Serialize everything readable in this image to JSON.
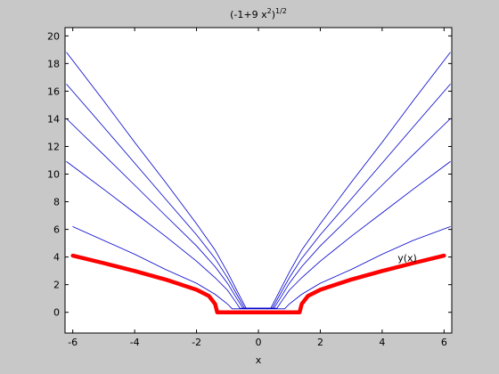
{
  "figure": {
    "background": "#c8c8c8"
  },
  "chart_data": {
    "type": "line",
    "title_base": "(-1+9 x",
    "title_sup1": "2",
    "title_close": ")",
    "title_sup2": "1/2",
    "xlabel": "x",
    "ylabel": "",
    "xlim": [
      -6.25,
      6.25
    ],
    "ylim": [
      -1.5,
      20.6
    ],
    "xticks": [
      -6,
      -4,
      -2,
      0,
      2,
      4,
      6
    ],
    "yticks": [
      0,
      2,
      4,
      6,
      8,
      10,
      12,
      14,
      16,
      18,
      20
    ],
    "grid": false,
    "annotation": {
      "text": "y(x)",
      "x": 4.5,
      "y": 3.7
    },
    "series": [
      {
        "color": "#0000cc",
        "width": 0.8,
        "points": [
          [
            -6.0,
            6.2
          ],
          [
            -5.0,
            5.2
          ],
          [
            -4.0,
            4.2
          ],
          [
            -3.0,
            3.1
          ],
          [
            -2.0,
            2.1
          ],
          [
            -1.4,
            1.3
          ],
          [
            -1.0,
            0.6
          ],
          [
            -0.85,
            0.25
          ],
          [
            0.85,
            0.25
          ],
          [
            1.0,
            0.6
          ],
          [
            1.4,
            1.3
          ],
          [
            2.0,
            2.1
          ],
          [
            3.0,
            3.1
          ],
          [
            4.0,
            4.2
          ],
          [
            5.0,
            5.2
          ],
          [
            6.2,
            6.2
          ]
        ]
      },
      {
        "color": "#0000cc",
        "width": 0.8,
        "points": [
          [
            -6.2,
            10.9
          ],
          [
            -5.0,
            8.9
          ],
          [
            -4.0,
            7.2
          ],
          [
            -3.0,
            5.5
          ],
          [
            -2.0,
            3.7
          ],
          [
            -1.4,
            2.5
          ],
          [
            -1.0,
            1.6
          ],
          [
            -0.75,
            0.8
          ],
          [
            -0.6,
            0.3
          ],
          [
            0.6,
            0.3
          ],
          [
            0.75,
            0.8
          ],
          [
            1.0,
            1.6
          ],
          [
            1.4,
            2.5
          ],
          [
            2.0,
            3.7
          ],
          [
            3.0,
            5.5
          ],
          [
            4.0,
            7.2
          ],
          [
            5.0,
            8.9
          ],
          [
            6.2,
            10.9
          ]
        ]
      },
      {
        "color": "#0000cc",
        "width": 0.8,
        "points": [
          [
            -6.2,
            14.0
          ],
          [
            -5.0,
            11.4
          ],
          [
            -4.0,
            9.2
          ],
          [
            -3.0,
            7.0
          ],
          [
            -2.0,
            4.8
          ],
          [
            -1.4,
            3.3
          ],
          [
            -1.0,
            2.1
          ],
          [
            -0.7,
            1.0
          ],
          [
            -0.5,
            0.3
          ],
          [
            0.5,
            0.3
          ],
          [
            0.7,
            1.0
          ],
          [
            1.0,
            2.1
          ],
          [
            1.4,
            3.3
          ],
          [
            2.0,
            4.8
          ],
          [
            3.0,
            7.0
          ],
          [
            4.0,
            9.2
          ],
          [
            5.0,
            11.4
          ],
          [
            6.2,
            14.0
          ]
        ]
      },
      {
        "color": "#0000cc",
        "width": 0.8,
        "points": [
          [
            -6.2,
            16.5
          ],
          [
            -5.0,
            13.4
          ],
          [
            -4.0,
            10.8
          ],
          [
            -3.0,
            8.2
          ],
          [
            -2.0,
            5.6
          ],
          [
            -1.4,
            3.9
          ],
          [
            -1.0,
            2.5
          ],
          [
            -0.7,
            1.3
          ],
          [
            -0.45,
            0.3
          ],
          [
            0.45,
            0.3
          ],
          [
            0.7,
            1.3
          ],
          [
            1.0,
            2.5
          ],
          [
            1.4,
            3.9
          ],
          [
            2.0,
            5.6
          ],
          [
            3.0,
            8.2
          ],
          [
            4.0,
            10.8
          ],
          [
            5.0,
            13.4
          ],
          [
            6.2,
            16.5
          ]
        ]
      },
      {
        "color": "#0000cc",
        "width": 0.8,
        "points": [
          [
            -6.2,
            18.8
          ],
          [
            -5.0,
            15.3
          ],
          [
            -4.0,
            12.3
          ],
          [
            -3.0,
            9.4
          ],
          [
            -2.0,
            6.4
          ],
          [
            -1.4,
            4.5
          ],
          [
            -1.0,
            2.9
          ],
          [
            -0.7,
            1.6
          ],
          [
            -0.4,
            0.3
          ],
          [
            0.4,
            0.3
          ],
          [
            0.7,
            1.6
          ],
          [
            1.0,
            2.9
          ],
          [
            1.4,
            4.5
          ],
          [
            2.0,
            6.4
          ],
          [
            3.0,
            9.4
          ],
          [
            4.0,
            12.3
          ],
          [
            5.0,
            15.3
          ],
          [
            6.2,
            18.8
          ]
        ]
      },
      {
        "color": "#ff0000",
        "width": 4.5,
        "points": [
          [
            -6.0,
            4.1
          ],
          [
            -5.0,
            3.56
          ],
          [
            -4.0,
            2.99
          ],
          [
            -3.0,
            2.37
          ],
          [
            -2.0,
            1.63
          ],
          [
            -1.6,
            1.18
          ],
          [
            -1.4,
            0.6
          ],
          [
            -1.33,
            0.0
          ],
          [
            0.0,
            0.0
          ],
          [
            1.33,
            0.0
          ],
          [
            1.4,
            0.6
          ],
          [
            1.6,
            1.18
          ],
          [
            2.0,
            1.63
          ],
          [
            3.0,
            2.37
          ],
          [
            4.0,
            2.99
          ],
          [
            5.0,
            3.56
          ],
          [
            6.0,
            4.1
          ]
        ]
      }
    ]
  }
}
